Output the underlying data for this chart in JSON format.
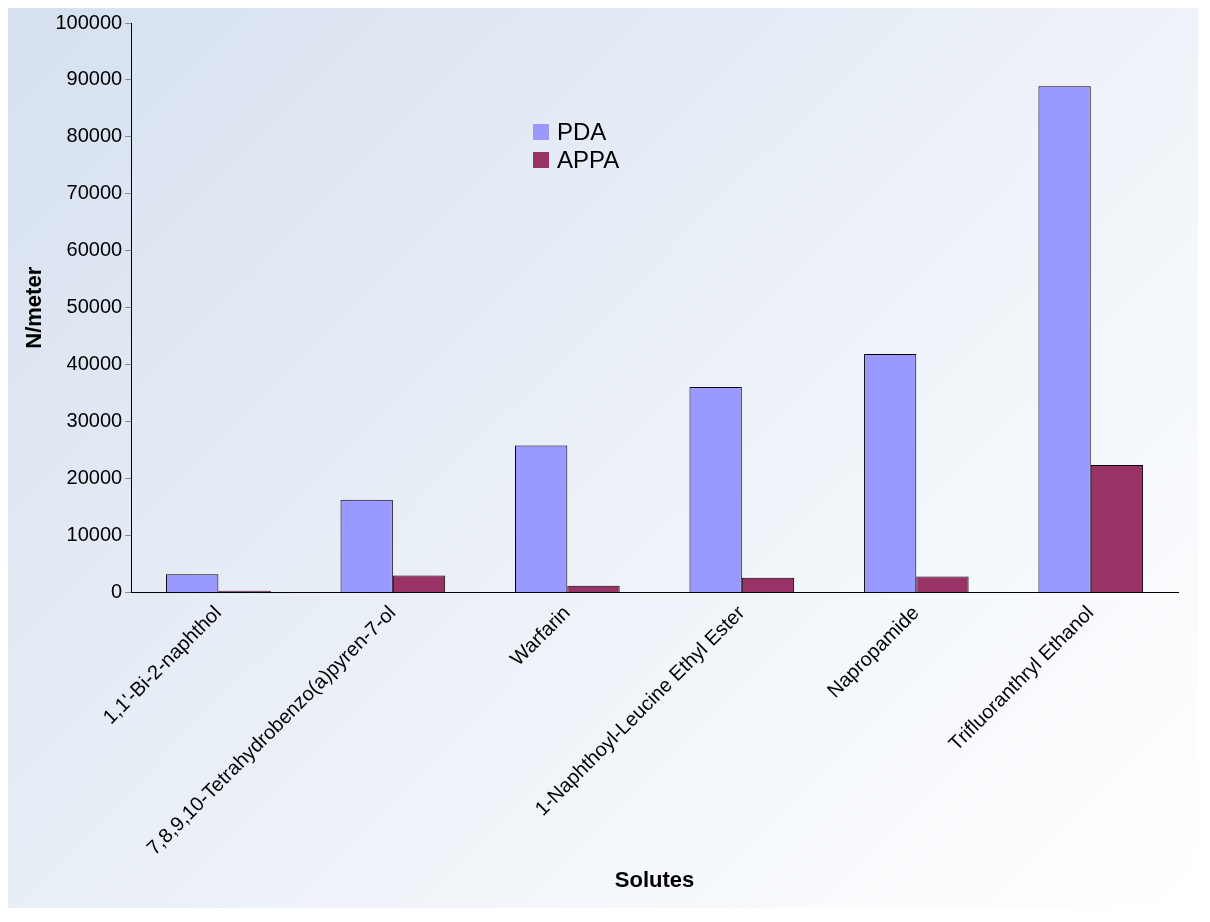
{
  "chart_data": {
    "type": "bar",
    "xlabel": "Solutes",
    "ylabel": "N/meter",
    "categories": [
      "1,1'-Bi-2-naphthol",
      "7,8,9,10-Tetrahydrobenzo(a)pyren-7-ol",
      "Warfarin",
      "1-Naphthoyl-Leucine Ethyl Ester",
      "Napropamide",
      "Trifluoranthryl Ethanol"
    ],
    "series": [
      {
        "name": "PDA",
        "color": "#9999ff",
        "values": [
          3200,
          16300,
          25800,
          36100,
          41900,
          88900
        ]
      },
      {
        "name": "APPA",
        "color": "#993366",
        "values": [
          300,
          3000,
          1200,
          2600,
          2800,
          22400
        ]
      }
    ],
    "ylim": [
      0,
      100000
    ],
    "yticks": [
      0,
      10000,
      20000,
      30000,
      40000,
      50000,
      60000,
      70000,
      80000,
      90000,
      100000
    ],
    "grid": false,
    "legend": "top"
  }
}
